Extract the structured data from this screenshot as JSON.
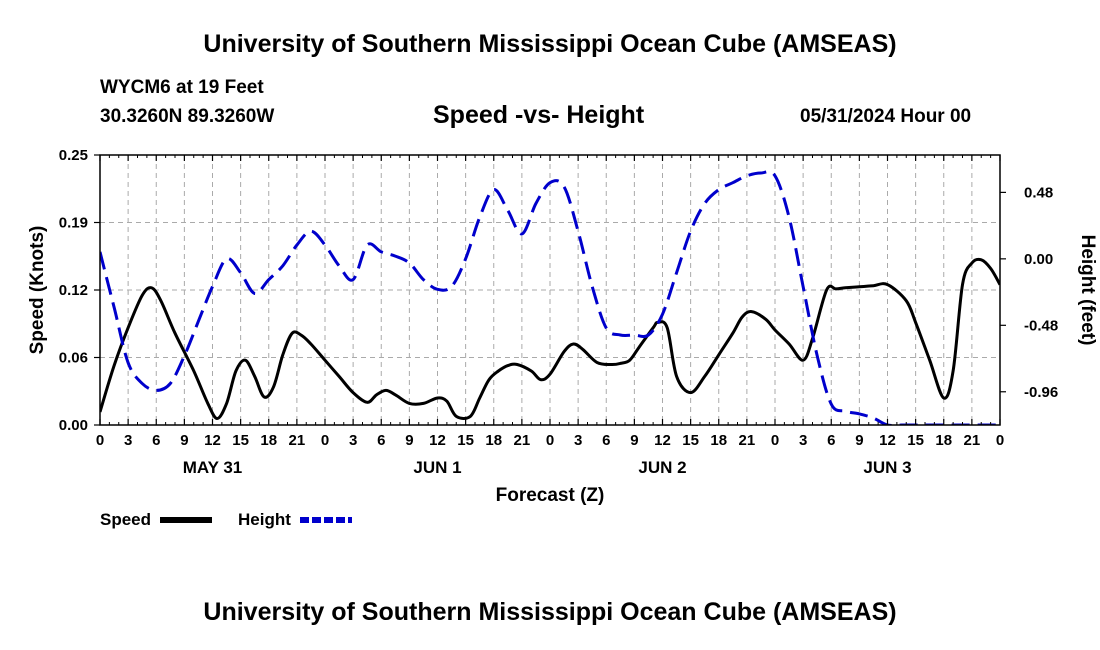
{
  "header": {
    "title": "University of Southern Mississippi Ocean Cube (AMSEAS)",
    "station": "WYCM6 at 19 Feet",
    "coordinates": "30.3260N  89.3260W",
    "chart_title": "Speed -vs- Height",
    "datetime": "05/31/2024 Hour 00"
  },
  "footer": {
    "title": "University of Southern Mississippi Ocean Cube (AMSEAS)"
  },
  "chart_data": {
    "type": "line",
    "title": "Speed -vs- Height",
    "xlabel": "Forecast (Z)",
    "ylabel": "Speed (Knots)",
    "y2label": "Height (feet)",
    "xlim": [
      0,
      96
    ],
    "ylim": [
      0,
      0.25
    ],
    "y2lim": [
      -1.2,
      0.75
    ],
    "grid": true,
    "x_tick_labels": [
      "0",
      "3",
      "6",
      "9",
      "12",
      "15",
      "18",
      "21",
      "0",
      "3",
      "6",
      "9",
      "12",
      "15",
      "18",
      "21",
      "0",
      "3",
      "6",
      "9",
      "12",
      "15",
      "18",
      "21",
      "0",
      "3",
      "6",
      "9",
      "12",
      "15",
      "18",
      "21",
      "0"
    ],
    "day_labels": [
      {
        "label": "MAY 31",
        "hour": 12
      },
      {
        "label": "JUN 1",
        "hour": 36
      },
      {
        "label": "JUN 2",
        "hour": 60
      },
      {
        "label": "JUN 3",
        "hour": 84
      }
    ],
    "y_ticks": [
      "0.00",
      "0.06",
      "0.12",
      "0.19",
      "0.25"
    ],
    "y_tick_values": [
      0,
      0.0625,
      0.125,
      0.1875,
      0.25
    ],
    "y2_ticks": [
      "-0.96",
      "-0.48",
      "0.00",
      "0.48"
    ],
    "y2_tick_values": [
      -0.96,
      -0.48,
      0.0,
      0.48
    ],
    "legend": [
      {
        "name": "Speed",
        "color": "#000000",
        "dash": "solid"
      },
      {
        "name": "Height",
        "color": "#0000cc",
        "dash": "dashed"
      }
    ],
    "legend_position": "bottom-left",
    "series": [
      {
        "name": "Speed",
        "axis": "left",
        "color": "#000000",
        "x": [
          0,
          1.5,
          3,
          4.5,
          5.5,
          6.5,
          8,
          10,
          11.5,
          12.5,
          13.5,
          14.5,
          15.5,
          16.5,
          17.5,
          18.5,
          19.5,
          20.5,
          21.5,
          22.5,
          24,
          25.5,
          27,
          28.5,
          29.5,
          30.5,
          31.5,
          33,
          34.5,
          36,
          37,
          38,
          39.5,
          40.5,
          41.5,
          42.5,
          43.5,
          44.5,
          46,
          47,
          48,
          49.5,
          50.5,
          51.5,
          53,
          54.5,
          55.5,
          56.5,
          57.5,
          59,
          59.5,
          60.5,
          61.5,
          63,
          64.5,
          66,
          67.5,
          68.5,
          69.5,
          71,
          72,
          73.5,
          75,
          76,
          77.5,
          78.5,
          79.5,
          81,
          82.5,
          84,
          86,
          87,
          88.5,
          90,
          91,
          92,
          93,
          94,
          95,
          96
        ],
        "y": [
          0.012,
          0.055,
          0.09,
          0.12,
          0.127,
          0.115,
          0.085,
          0.05,
          0.02,
          0.006,
          0.02,
          0.05,
          0.06,
          0.045,
          0.026,
          0.035,
          0.065,
          0.085,
          0.083,
          0.075,
          0.06,
          0.045,
          0.03,
          0.021,
          0.028,
          0.032,
          0.028,
          0.02,
          0.02,
          0.025,
          0.022,
          0.008,
          0.008,
          0.025,
          0.042,
          0.05,
          0.055,
          0.056,
          0.05,
          0.042,
          0.047,
          0.068,
          0.075,
          0.07,
          0.058,
          0.056,
          0.057,
          0.06,
          0.072,
          0.09,
          0.095,
          0.09,
          0.045,
          0.03,
          0.045,
          0.065,
          0.085,
          0.1,
          0.105,
          0.098,
          0.088,
          0.075,
          0.06,
          0.08,
          0.125,
          0.126,
          0.127,
          0.128,
          0.129,
          0.13,
          0.115,
          0.095,
          0.06,
          0.025,
          0.05,
          0.13,
          0.15,
          0.153,
          0.145,
          0.13
        ]
      },
      {
        "name": "Height",
        "axis": "right",
        "color": "#0000cc",
        "x": [
          0,
          1.5,
          3,
          4.5,
          6,
          7.5,
          9,
          10.5,
          12,
          13.5,
          15,
          16.5,
          18,
          19.5,
          21,
          22.5,
          24,
          25.5,
          27,
          28.5,
          30,
          31.5,
          33,
          34.5,
          36,
          37.5,
          39,
          40.5,
          42,
          43.5,
          45,
          46.5,
          48,
          49.5,
          51,
          52.5,
          54,
          55.5,
          57,
          58.5,
          60,
          61.5,
          63,
          64.5,
          66,
          67.5,
          69,
          70.5,
          72,
          73.5,
          75,
          76.5,
          78,
          79.5,
          81,
          82.5,
          84,
          85.5,
          87,
          88.5,
          90,
          91.5,
          93,
          94.5,
          96
        ],
        "y": [
          0.05,
          -0.35,
          -0.75,
          -0.9,
          -0.95,
          -0.9,
          -0.7,
          -0.45,
          -0.2,
          0.0,
          -0.1,
          -0.25,
          -0.15,
          -0.05,
          0.1,
          0.2,
          0.1,
          -0.05,
          -0.15,
          0.1,
          0.05,
          0.02,
          -0.03,
          -0.15,
          -0.22,
          -0.2,
          0.0,
          0.3,
          0.5,
          0.35,
          0.18,
          0.4,
          0.55,
          0.52,
          0.2,
          -0.2,
          -0.5,
          -0.55,
          -0.55,
          -0.55,
          -0.4,
          -0.1,
          0.2,
          0.4,
          0.5,
          0.55,
          0.6,
          0.62,
          0.6,
          0.3,
          -0.2,
          -0.7,
          -1.05,
          -1.1,
          -1.12,
          -1.15,
          -1.2,
          -1.2,
          -1.2,
          -1.2,
          -1.2,
          -1.2,
          -1.2,
          -1.2,
          -1.2
        ]
      }
    ]
  }
}
